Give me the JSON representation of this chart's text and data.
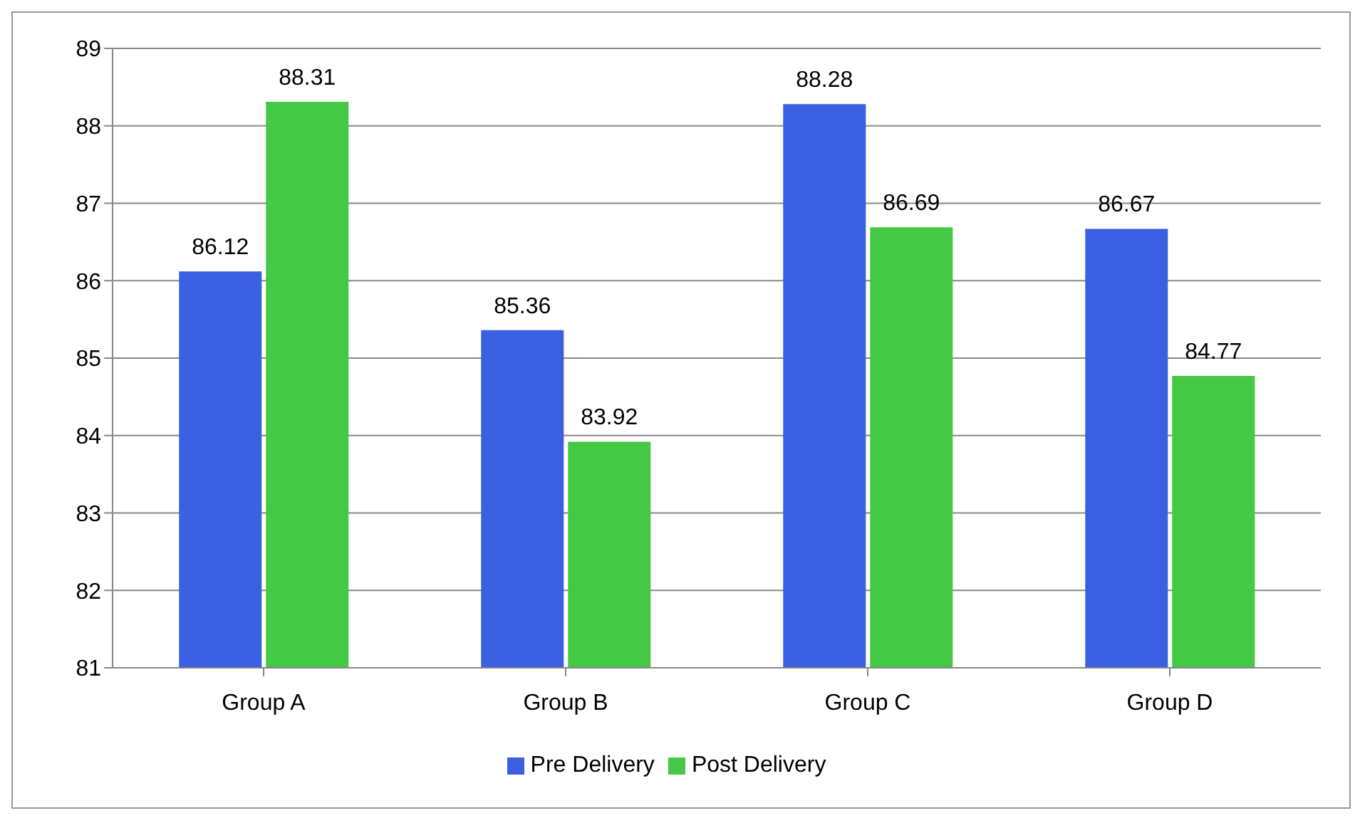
{
  "chart_data": {
    "type": "bar",
    "categories": [
      "Group A",
      "Group B",
      "Group C",
      "Group D"
    ],
    "series": [
      {
        "name": "Pre Delivery",
        "color": "#3a5fe0",
        "values": [
          86.12,
          85.36,
          88.28,
          86.67
        ]
      },
      {
        "name": "Post Delivery",
        "color": "#45c845",
        "values": [
          88.31,
          83.92,
          86.69,
          84.77
        ]
      }
    ],
    "ylim": [
      81,
      89
    ],
    "yticks": [
      81,
      82,
      83,
      84,
      85,
      86,
      87,
      88,
      89
    ],
    "grid": "y",
    "legend": "bottom",
    "data_labels": true
  }
}
